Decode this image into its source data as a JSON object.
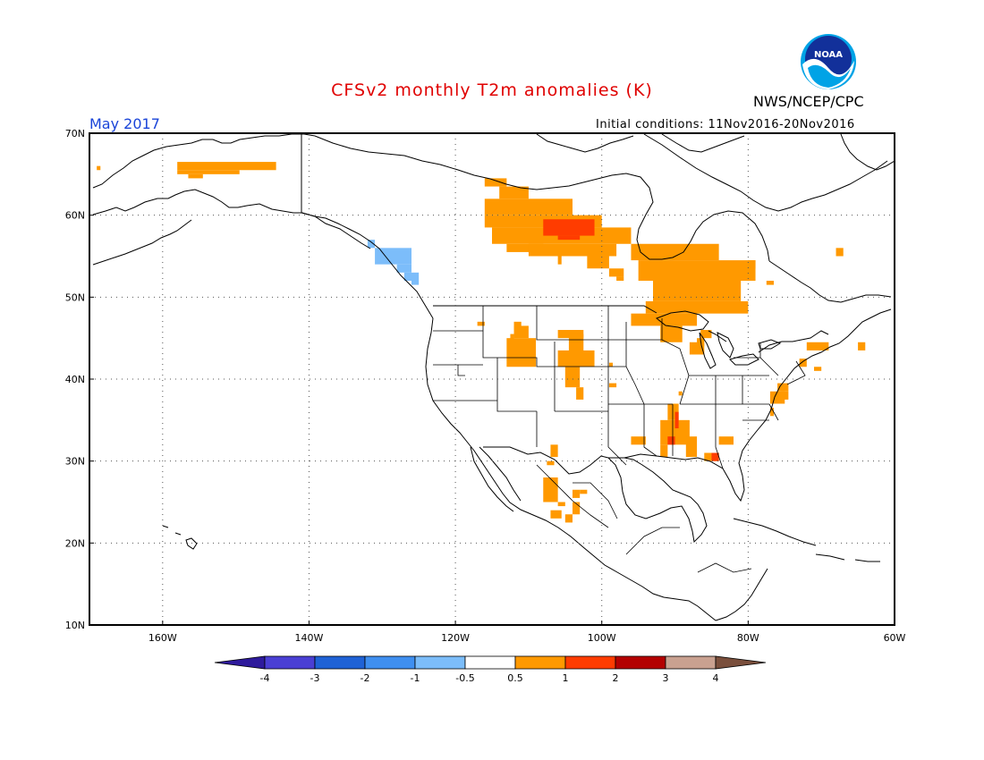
{
  "title": "CFSv2 monthly T2m anomalies (K)",
  "agency": "NWS/NCEP/CPC",
  "logo_text": "NOAA",
  "valid_month": "May 2017",
  "initial_conditions": "Initial conditions: 11Nov2016-20Nov2016",
  "map": {
    "lon_range": [
      -170,
      -60
    ],
    "lat_range": [
      10,
      70
    ],
    "lat_ticks": [
      "70N",
      "60N",
      "50N",
      "40N",
      "30N",
      "20N",
      "10N"
    ],
    "lon_ticks": [
      "160W",
      "140W",
      "120W",
      "100W",
      "80W",
      "60W"
    ],
    "grid": "dotted"
  },
  "colorbar": {
    "labels": [
      "-4",
      "-3",
      "-2",
      "-1",
      "-0.5",
      "0.5",
      "1",
      "2",
      "3",
      "4"
    ],
    "colors": [
      "#2e1a9c",
      "#4a3fd4",
      "#1f62d6",
      "#3f8ff0",
      "#7cbdfa",
      "#ffffff",
      "#ff9900",
      "#ff3c00",
      "#b30000",
      "#c9a190",
      "#7a4f3c"
    ]
  },
  "anomaly_regions": [
    {
      "level": "0.5 to 1",
      "color": "#ff9900",
      "boxes": [
        [
          -158,
          -144.5,
          65.5,
          66.5
        ],
        [
          -158,
          -149.5,
          65,
          65.5
        ],
        [
          -156.5,
          -154.5,
          64.5,
          65
        ],
        [
          -169,
          -168.5,
          65.5,
          66
        ],
        [
          -116,
          -113,
          63.5,
          64.5
        ],
        [
          -114,
          -110,
          62,
          63.5
        ],
        [
          -116,
          -104,
          60,
          62
        ],
        [
          -116,
          -100,
          58.5,
          60
        ],
        [
          -115,
          -96,
          56.5,
          58.5
        ],
        [
          -113,
          -108,
          55.5,
          56.5
        ],
        [
          -110,
          -98,
          55,
          56.5
        ],
        [
          -106,
          -105.5,
          54,
          55
        ],
        [
          -102,
          -99,
          53.5,
          55
        ],
        [
          -96,
          -84,
          54.5,
          56.5
        ],
        [
          -95,
          -79,
          52,
          54.5
        ],
        [
          -93,
          -81,
          49.5,
          52
        ],
        [
          -94,
          -80,
          48,
          49.5
        ],
        [
          -99,
          -97,
          52.5,
          53.5
        ],
        [
          -98,
          -97,
          52,
          52.5
        ],
        [
          -80,
          -79,
          53.5,
          54.5
        ],
        [
          -77.5,
          -76.5,
          51.5,
          52
        ],
        [
          -96,
          -87,
          46.5,
          48
        ],
        [
          -92,
          -89,
          44.5,
          46.5
        ],
        [
          -86.5,
          -85,
          45,
          46
        ],
        [
          -112,
          -110,
          45,
          46.5
        ],
        [
          -113,
          -109,
          41.5,
          45
        ],
        [
          -112.5,
          -112,
          42,
          45.5
        ],
        [
          -106,
          -102.5,
          45,
          46
        ],
        [
          -104.5,
          -102.5,
          43,
          45.5
        ],
        [
          -106,
          -101,
          41.5,
          43.5
        ],
        [
          -105,
          -103,
          39,
          41.5
        ],
        [
          -103.5,
          -102.5,
          37.5,
          39
        ],
        [
          -112,
          -111,
          46,
          47
        ],
        [
          -117,
          -116,
          46.5,
          47
        ],
        [
          -99,
          -98.5,
          41.5,
          42
        ],
        [
          -99,
          -98,
          39,
          39.5
        ],
        [
          -89.5,
          -89,
          38,
          38.5
        ],
        [
          -91,
          -89.5,
          35,
          37
        ],
        [
          -92,
          -88,
          32,
          35
        ],
        [
          -92,
          -91,
          30.5,
          32
        ],
        [
          -88.5,
          -87,
          30.5,
          33
        ],
        [
          -86,
          -84,
          30,
          31
        ],
        [
          -84,
          -82,
          32,
          33
        ],
        [
          -96,
          -94,
          32,
          33
        ],
        [
          -104,
          -103,
          23.5,
          25
        ],
        [
          -105,
          -104,
          22.5,
          23.5
        ],
        [
          -108,
          -106,
          25,
          28
        ],
        [
          -106,
          -105,
          24.5,
          25
        ],
        [
          -104,
          -103,
          25.5,
          26.5
        ],
        [
          -103,
          -102,
          26,
          26.5
        ],
        [
          -107,
          -106,
          30.5,
          32
        ],
        [
          -107.5,
          -106.5,
          29.5,
          30
        ],
        [
          -107,
          -105.5,
          23,
          24
        ],
        [
          -72,
          -69,
          43.5,
          44.5
        ],
        [
          -73,
          -72,
          41.5,
          42.5
        ],
        [
          -71,
          -70,
          41,
          41.5
        ],
        [
          -76,
          -74.5,
          38.5,
          39.5
        ],
        [
          -77,
          -75,
          37,
          38.5
        ],
        [
          -77,
          -76.5,
          35.5,
          36.5
        ],
        [
          -75.5,
          -74.5,
          37.5,
          38.5
        ],
        [
          -65,
          -64,
          43.5,
          44.5
        ],
        [
          -68,
          -67,
          55,
          56
        ],
        [
          -87,
          -86,
          44,
          45
        ],
        [
          -88,
          -86,
          43,
          44.5
        ]
      ]
    },
    {
      "level": "1 to 2",
      "color": "#ff3c00",
      "boxes": [
        [
          -108,
          -101,
          57.5,
          59.5
        ],
        [
          -106,
          -103,
          57,
          57.5
        ],
        [
          -90,
          -89.5,
          34,
          36
        ],
        [
          -91,
          -90,
          32,
          33
        ],
        [
          -85,
          -84,
          30,
          31
        ]
      ]
    },
    {
      "level": "-1 to -0.5",
      "color": "#7cbdfa",
      "boxes": [
        [
          -132,
          -131,
          56,
          57
        ],
        [
          -131,
          -126,
          54,
          56
        ],
        [
          -128,
          -126,
          53,
          54
        ],
        [
          -127,
          -125,
          52,
          53
        ],
        [
          -126,
          -125,
          51.5,
          52
        ]
      ]
    }
  ],
  "boundaries_note": "coastlines, national and state borders"
}
